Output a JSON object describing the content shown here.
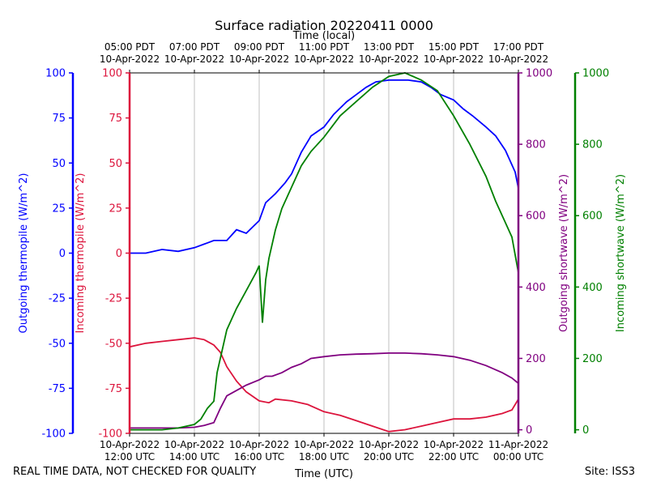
{
  "chart_data": {
    "type": "line",
    "title": "Surface radiation 20220411 0000",
    "top_axis_label": "Time (local)",
    "xlabel": "Time (UTC)",
    "footer_left": "REAL TIME DATA, NOT CHECKED FOR QUALITY",
    "footer_right": "Site: ISS3",
    "x_range_utc_hours": [
      12,
      24
    ],
    "bottom_ticks": [
      {
        "h": 12,
        "line1": "10-Apr-2022",
        "line2": "12:00 UTC"
      },
      {
        "h": 14,
        "line1": "10-Apr-2022",
        "line2": "14:00 UTC"
      },
      {
        "h": 16,
        "line1": "10-Apr-2022",
        "line2": "16:00 UTC"
      },
      {
        "h": 18,
        "line1": "10-Apr-2022",
        "line2": "18:00 UTC"
      },
      {
        "h": 20,
        "line1": "10-Apr-2022",
        "line2": "20:00 UTC"
      },
      {
        "h": 22,
        "line1": "10-Apr-2022",
        "line2": "22:00 UTC"
      },
      {
        "h": 24,
        "line1": "11-Apr-2022",
        "line2": "00:00 UTC"
      }
    ],
    "top_ticks": [
      {
        "h": 12,
        "line1": "05:00 PDT",
        "line2": "10-Apr-2022"
      },
      {
        "h": 14,
        "line1": "07:00 PDT",
        "line2": "10-Apr-2022"
      },
      {
        "h": 16,
        "line1": "09:00 PDT",
        "line2": "10-Apr-2022"
      },
      {
        "h": 18,
        "line1": "11:00 PDT",
        "line2": "10-Apr-2022"
      },
      {
        "h": 20,
        "line1": "13:00 PDT",
        "line2": "10-Apr-2022"
      },
      {
        "h": 22,
        "line1": "15:00 PDT",
        "line2": "10-Apr-2022"
      },
      {
        "h": 24,
        "line1": "17:00 PDT",
        "line2": "10-Apr-2022"
      }
    ],
    "axes": [
      {
        "id": "outgoing_thermopile",
        "label": "Outgoing thermopile (W/m^2)",
        "color": "#0000ff",
        "range": [
          -100,
          100
        ],
        "ticks": [
          -100,
          -75,
          -50,
          -25,
          0,
          25,
          50,
          75,
          100
        ]
      },
      {
        "id": "incoming_thermopile",
        "label": "Incoming thermopile (W/m^2)",
        "color": "#dc143c",
        "range": [
          -100,
          100
        ],
        "ticks": [
          -100,
          -75,
          -50,
          -25,
          0,
          25,
          50,
          75,
          100
        ]
      },
      {
        "id": "outgoing_shortwave",
        "label": "Outgoing shortwave (W/m^2)",
        "color": "#800080",
        "range": [
          -10,
          1000
        ],
        "ticks": [
          0,
          200,
          400,
          600,
          800,
          1000
        ]
      },
      {
        "id": "incoming_shortwave",
        "label": "Incoming shortwave (W/m^2)",
        "color": "#008000",
        "range": [
          -10,
          1000
        ],
        "ticks": [
          0,
          200,
          400,
          600,
          800,
          1000
        ]
      }
    ],
    "series": [
      {
        "name": "Outgoing thermopile",
        "axis": "outgoing_thermopile",
        "color": "#0000ff",
        "x": [
          12,
          12.5,
          13,
          13.5,
          14,
          14.3,
          14.6,
          15.0,
          15.3,
          15.6,
          16.0,
          16.2,
          16.5,
          16.8,
          17.0,
          17.3,
          17.6,
          18.0,
          18.3,
          18.7,
          19.0,
          19.3,
          19.6,
          20.0,
          20.3,
          20.6,
          21.0,
          21.3,
          21.6,
          22.0,
          22.3,
          22.6,
          23.0,
          23.3,
          23.6,
          23.9,
          24.0
        ],
        "values": [
          0,
          0,
          2,
          1,
          3,
          5,
          7,
          7,
          13,
          11,
          18,
          28,
          33,
          39,
          44,
          56,
          65,
          70,
          77,
          84,
          88,
          92,
          95,
          96,
          96,
          96,
          95,
          92,
          88,
          85,
          80,
          76,
          70,
          65,
          57,
          45,
          36
        ]
      },
      {
        "name": "Incoming thermopile",
        "axis": "incoming_thermopile",
        "color": "#dc143c",
        "x": [
          12,
          12.5,
          13,
          13.5,
          14,
          14.3,
          14.6,
          14.8,
          15.0,
          15.3,
          15.6,
          16.0,
          16.3,
          16.5,
          17.0,
          17.5,
          18.0,
          18.5,
          19.0,
          19.5,
          20.0,
          20.5,
          21.0,
          21.5,
          22.0,
          22.5,
          23.0,
          23.5,
          23.8,
          24.0
        ],
        "values": [
          -52,
          -50,
          -49,
          -48,
          -47,
          -48,
          -51,
          -55,
          -63,
          -71,
          -77,
          -82,
          -83,
          -81,
          -82,
          -84,
          -88,
          -90,
          -93,
          -96,
          -99,
          -98,
          -96,
          -94,
          -92,
          -92,
          -91,
          -89,
          -87,
          -81
        ]
      },
      {
        "name": "Outgoing shortwave",
        "axis": "outgoing_shortwave",
        "color": "#800080",
        "x": [
          12,
          12.5,
          13,
          13.5,
          14,
          14.3,
          14.6,
          14.8,
          15.0,
          15.3,
          15.6,
          16.0,
          16.2,
          16.4,
          16.7,
          17.0,
          17.3,
          17.6,
          18.0,
          18.5,
          19.0,
          19.5,
          20.0,
          20.5,
          21.0,
          21.5,
          22.0,
          22.5,
          23.0,
          23.5,
          23.8,
          24.0
        ],
        "values": [
          5,
          5,
          5,
          5,
          7,
          12,
          20,
          60,
          95,
          110,
          125,
          140,
          150,
          150,
          160,
          175,
          185,
          200,
          205,
          210,
          212,
          213,
          215,
          215,
          213,
          210,
          205,
          195,
          180,
          160,
          145,
          130
        ]
      },
      {
        "name": "Incoming shortwave",
        "axis": "incoming_shortwave",
        "color": "#008000",
        "x": [
          12,
          12.5,
          13,
          13.5,
          14,
          14.2,
          14.4,
          14.6,
          14.7,
          14.8,
          15.0,
          15.3,
          15.6,
          15.9,
          16.0,
          16.1,
          16.2,
          16.3,
          16.5,
          16.7,
          17.0,
          17.3,
          17.6,
          18.0,
          18.5,
          19.0,
          19.5,
          20.0,
          20.5,
          21.0,
          21.5,
          22.0,
          22.5,
          23.0,
          23.3,
          23.6,
          23.8,
          24.0
        ],
        "values": [
          0,
          0,
          0,
          5,
          15,
          30,
          60,
          80,
          160,
          200,
          280,
          340,
          390,
          440,
          460,
          300,
          420,
          480,
          560,
          620,
          680,
          740,
          780,
          820,
          880,
          920,
          960,
          990,
          1000,
          980,
          950,
          880,
          800,
          710,
          640,
          580,
          540,
          440
        ]
      }
    ]
  }
}
